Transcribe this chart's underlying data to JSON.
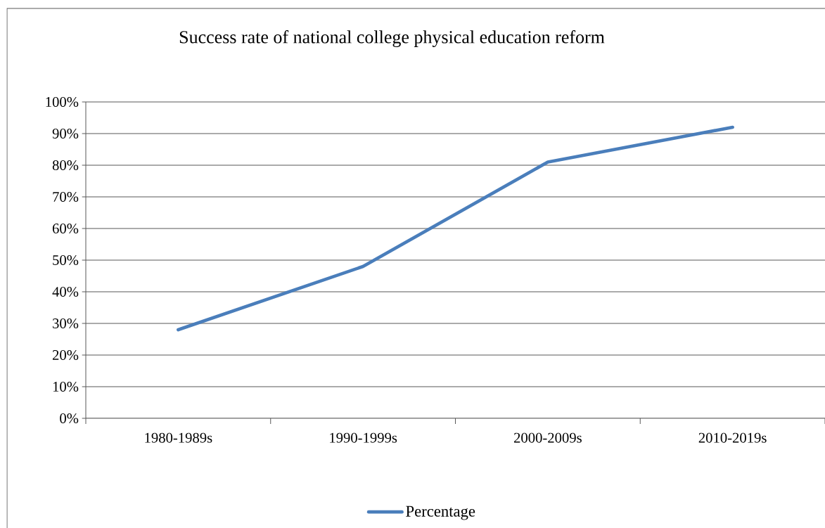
{
  "chart_data": {
    "type": "line",
    "title": "Success rate of national college physical education reform",
    "categories": [
      "1980-1989s",
      "1990-1999s",
      "2000-2009s",
      "2010-2019s"
    ],
    "series": [
      {
        "name": "Percentage",
        "color": "#4a7ebb",
        "values": [
          28,
          48,
          81,
          92
        ]
      }
    ],
    "ylim": [
      0,
      100
    ],
    "yticks": [
      {
        "value": 0,
        "label": "0%"
      },
      {
        "value": 10,
        "label": "10%"
      },
      {
        "value": 20,
        "label": "20%"
      },
      {
        "value": 30,
        "label": "30%"
      },
      {
        "value": 40,
        "label": "40%"
      },
      {
        "value": 50,
        "label": "50%"
      },
      {
        "value": 60,
        "label": "60%"
      },
      {
        "value": 70,
        "label": "70%"
      },
      {
        "value": 80,
        "label": "80%"
      },
      {
        "value": 90,
        "label": "90%"
      },
      {
        "value": 100,
        "label": "100%"
      }
    ],
    "grid": "y",
    "legend": "bottom",
    "marker": "none",
    "line_style": "solid"
  }
}
